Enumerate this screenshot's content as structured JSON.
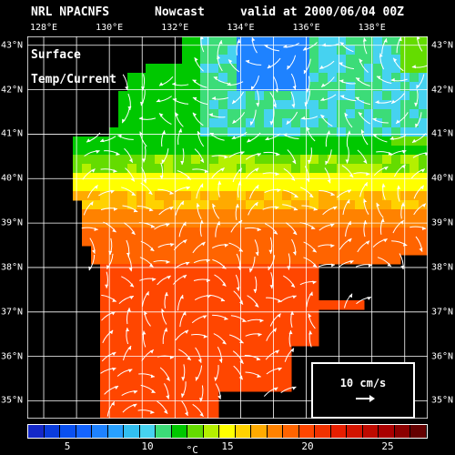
{
  "header": {
    "model": "NRL NPACNFS",
    "mode": "Nowcast",
    "valid": "valid at 2000/06/04 00Z"
  },
  "map": {
    "title_line1": "Surface",
    "title_line2": "Temp/Current"
  },
  "axes": {
    "lon_labels": [
      "128°E",
      "130°E",
      "132°E",
      "134°E",
      "136°E",
      "138°E"
    ],
    "lat_labels": [
      "43°N",
      "42°N",
      "41°N",
      "40°N",
      "39°N",
      "38°N",
      "37°N",
      "36°N",
      "35°N"
    ],
    "lon_range": [
      127.5,
      139.7
    ],
    "lat_range": [
      34.6,
      43.2
    ]
  },
  "reference_vector": {
    "label": "10 cm/s"
  },
  "colorbar": {
    "unit": "°C",
    "tick_labels": [
      "5",
      "10",
      "15",
      "20",
      "25"
    ],
    "colors": [
      "#1428c8",
      "#0a3cdc",
      "#0a50f0",
      "#1464ff",
      "#1e82ff",
      "#28a0ff",
      "#32bef0",
      "#46d2f0",
      "#3cdc78",
      "#00c800",
      "#64dc00",
      "#b4f000",
      "#ffff00",
      "#ffd200",
      "#ffaa00",
      "#ff8200",
      "#ff6400",
      "#ff4600",
      "#f03200",
      "#e61e00",
      "#d21400",
      "#be0a00",
      "#aa0000",
      "#8c0000",
      "#640000"
    ]
  },
  "colors": {
    "land": "#000000",
    "grid": "#ffffff",
    "vectors": "#ffffff"
  }
}
